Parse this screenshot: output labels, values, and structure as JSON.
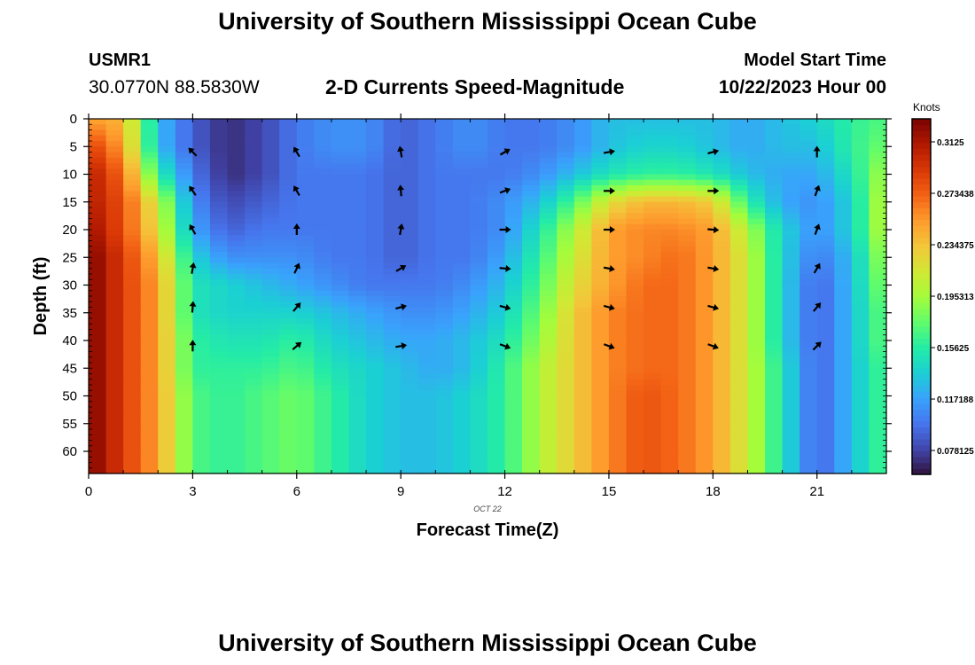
{
  "header": {
    "title": "University of Southern Mississippi Ocean Cube",
    "station_id": "USMR1",
    "location": "30.0770N  88.5830W",
    "plot_title": "2-D Currents Speed-Magnitude",
    "model_start_label": "Model Start Time",
    "model_start_value": "10/22/2023 Hour 00"
  },
  "footer": {
    "title": "University of Southern Mississippi Ocean Cube"
  },
  "chart_data": {
    "type": "heatmap",
    "title": "2-D Currents Speed-Magnitude",
    "xlabel": "Forecast Time(Z)",
    "ylabel": "Depth (ft)",
    "date_label": "OCT 22",
    "colorbar_label": "Knots",
    "xlim": [
      0,
      23
    ],
    "ylim": [
      0,
      64
    ],
    "x_ticks": [
      0,
      3,
      6,
      9,
      12,
      15,
      18,
      21
    ],
    "y_ticks": [
      0,
      5,
      10,
      15,
      20,
      25,
      30,
      35,
      40,
      45,
      50,
      55,
      60
    ],
    "colorbar_ticks": [
      "0.078125",
      "0.117188",
      "0.15625",
      "0.195313",
      "0.234375",
      "0.273438",
      "0.3125"
    ],
    "colorbar_range": [
      0.06,
      0.33
    ],
    "colormap": [
      "#30123b",
      "#4145ab",
      "#4675ed",
      "#39a2fc",
      "#1bcfd4",
      "#24eca6",
      "#61fc6c",
      "#a4fc3b",
      "#d1e834",
      "#f3c63a",
      "#fe9b2d",
      "#f36315",
      "#d93806",
      "#b11901",
      "#7a0402"
    ],
    "speed_grid": {
      "hours": [
        0,
        1,
        2,
        3,
        4,
        5,
        6,
        7,
        8,
        9,
        10,
        11,
        12,
        13,
        14,
        15,
        16,
        17,
        18,
        19,
        20,
        21,
        22,
        23
      ],
      "depths_ft": [
        0,
        5,
        10,
        15,
        20,
        25,
        30,
        35,
        40,
        45,
        50,
        55,
        60,
        64
      ],
      "values_knots": [
        [
          0.25,
          0.24,
          0.13,
          0.09,
          0.07,
          0.08,
          0.1,
          0.11,
          0.11,
          0.09,
          0.1,
          0.11,
          0.1,
          0.1,
          0.11,
          0.13,
          0.13,
          0.13,
          0.13,
          0.12,
          0.13,
          0.14,
          0.16,
          0.17
        ],
        [
          0.29,
          0.25,
          0.13,
          0.09,
          0.07,
          0.08,
          0.1,
          0.11,
          0.11,
          0.09,
          0.1,
          0.11,
          0.1,
          0.1,
          0.11,
          0.13,
          0.14,
          0.14,
          0.13,
          0.12,
          0.13,
          0.13,
          0.16,
          0.18
        ],
        [
          0.31,
          0.27,
          0.16,
          0.1,
          0.07,
          0.08,
          0.1,
          0.1,
          0.1,
          0.09,
          0.1,
          0.1,
          0.1,
          0.11,
          0.13,
          0.15,
          0.16,
          0.16,
          0.15,
          0.13,
          0.12,
          0.12,
          0.15,
          0.2
        ],
        [
          0.31,
          0.28,
          0.21,
          0.11,
          0.08,
          0.09,
          0.1,
          0.1,
          0.1,
          0.09,
          0.1,
          0.1,
          0.11,
          0.13,
          0.17,
          0.22,
          0.24,
          0.24,
          0.23,
          0.16,
          0.12,
          0.11,
          0.14,
          0.21
        ],
        [
          0.32,
          0.28,
          0.22,
          0.12,
          0.09,
          0.1,
          0.1,
          0.1,
          0.1,
          0.09,
          0.1,
          0.1,
          0.11,
          0.15,
          0.2,
          0.25,
          0.26,
          0.26,
          0.25,
          0.2,
          0.14,
          0.11,
          0.14,
          0.21
        ],
        [
          0.33,
          0.29,
          0.24,
          0.14,
          0.11,
          0.11,
          0.11,
          0.1,
          0.1,
          0.09,
          0.1,
          0.1,
          0.12,
          0.16,
          0.21,
          0.25,
          0.26,
          0.27,
          0.25,
          0.21,
          0.14,
          0.1,
          0.13,
          0.2
        ],
        [
          0.33,
          0.29,
          0.25,
          0.15,
          0.14,
          0.13,
          0.12,
          0.11,
          0.1,
          0.1,
          0.1,
          0.11,
          0.13,
          0.17,
          0.22,
          0.25,
          0.27,
          0.27,
          0.25,
          0.21,
          0.14,
          0.09,
          0.13,
          0.19
        ],
        [
          0.33,
          0.29,
          0.25,
          0.15,
          0.14,
          0.14,
          0.14,
          0.13,
          0.12,
          0.11,
          0.11,
          0.12,
          0.14,
          0.18,
          0.23,
          0.26,
          0.27,
          0.27,
          0.25,
          0.21,
          0.14,
          0.09,
          0.13,
          0.18
        ],
        [
          0.33,
          0.29,
          0.25,
          0.16,
          0.15,
          0.15,
          0.16,
          0.14,
          0.13,
          0.12,
          0.12,
          0.13,
          0.15,
          0.19,
          0.23,
          0.26,
          0.27,
          0.27,
          0.25,
          0.21,
          0.14,
          0.09,
          0.13,
          0.18
        ],
        [
          0.33,
          0.29,
          0.25,
          0.16,
          0.16,
          0.16,
          0.17,
          0.15,
          0.14,
          0.13,
          0.12,
          0.13,
          0.16,
          0.2,
          0.23,
          0.26,
          0.27,
          0.27,
          0.25,
          0.21,
          0.15,
          0.09,
          0.13,
          0.17
        ],
        [
          0.33,
          0.29,
          0.25,
          0.17,
          0.16,
          0.17,
          0.18,
          0.16,
          0.14,
          0.13,
          0.13,
          0.14,
          0.16,
          0.2,
          0.23,
          0.26,
          0.28,
          0.27,
          0.25,
          0.21,
          0.15,
          0.09,
          0.13,
          0.17
        ],
        [
          0.33,
          0.29,
          0.25,
          0.17,
          0.16,
          0.17,
          0.18,
          0.16,
          0.14,
          0.13,
          0.13,
          0.14,
          0.16,
          0.2,
          0.23,
          0.26,
          0.28,
          0.27,
          0.25,
          0.21,
          0.15,
          0.09,
          0.13,
          0.17
        ],
        [
          0.33,
          0.29,
          0.25,
          0.17,
          0.16,
          0.17,
          0.18,
          0.16,
          0.14,
          0.13,
          0.13,
          0.14,
          0.16,
          0.2,
          0.23,
          0.26,
          0.28,
          0.27,
          0.25,
          0.21,
          0.15,
          0.09,
          0.13,
          0.17
        ],
        [
          0.33,
          0.29,
          0.25,
          0.17,
          0.16,
          0.17,
          0.18,
          0.16,
          0.14,
          0.13,
          0.13,
          0.14,
          0.16,
          0.2,
          0.23,
          0.26,
          0.28,
          0.27,
          0.25,
          0.21,
          0.15,
          0.09,
          0.13,
          0.17
        ]
      ]
    },
    "vectors": {
      "hours": [
        3,
        6,
        9,
        12,
        15,
        18,
        21
      ],
      "depths_ft": [
        6,
        13,
        20,
        27,
        34,
        41
      ],
      "direction_deg": [
        [
          315,
          330,
          350,
          60,
          80,
          75,
          0
        ],
        [
          325,
          330,
          355,
          70,
          90,
          90,
          20
        ],
        [
          330,
          0,
          10,
          90,
          90,
          95,
          20
        ],
        [
          10,
          25,
          60,
          95,
          100,
          100,
          30
        ],
        [
          5,
          40,
          75,
          105,
          105,
          105,
          40
        ],
        [
          0,
          50,
          80,
          110,
          110,
          110,
          45
        ]
      ]
    }
  }
}
